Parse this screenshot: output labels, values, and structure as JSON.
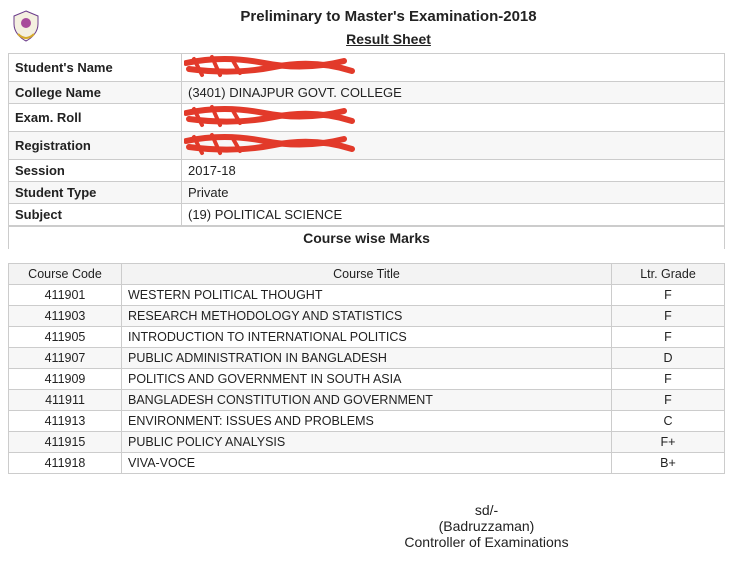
{
  "header": {
    "main_title": "Preliminary to Master's Examination-2018",
    "sheet_title": "Result Sheet"
  },
  "info": {
    "rows": [
      {
        "label": "Student's Name",
        "value": "",
        "redacted": true
      },
      {
        "label": "College Name",
        "value": "(3401) DINAJPUR GOVT. COLLEGE",
        "redacted": false
      },
      {
        "label": "Exam. Roll",
        "value": "",
        "redacted": true
      },
      {
        "label": "Registration",
        "value": "",
        "redacted": true
      },
      {
        "label": "Session",
        "value": "2017-18",
        "redacted": false
      },
      {
        "label": "Student Type",
        "value": "Private",
        "redacted": false
      },
      {
        "label": "Subject",
        "value": "(19) POLITICAL SCIENCE",
        "redacted": false
      }
    ]
  },
  "marks": {
    "caption": "Course wise Marks",
    "columns": [
      "Course Code",
      "Course Title",
      "Ltr. Grade"
    ],
    "rows": [
      {
        "code": "411901",
        "title": "WESTERN POLITICAL THOUGHT",
        "grade": "F"
      },
      {
        "code": "411903",
        "title": "RESEARCH METHODOLOGY AND STATISTICS",
        "grade": "F"
      },
      {
        "code": "411905",
        "title": "INTRODUCTION TO INTERNATIONAL POLITICS",
        "grade": "F"
      },
      {
        "code": "411907",
        "title": "PUBLIC ADMINISTRATION IN BANGLADESH",
        "grade": "D"
      },
      {
        "code": "411909",
        "title": "POLITICS AND GOVERNMENT IN SOUTH ASIA",
        "grade": "F"
      },
      {
        "code": "411911",
        "title": "BANGLADESH CONSTITUTION AND GOVERNMENT",
        "grade": "F"
      },
      {
        "code": "411913",
        "title": "ENVIRONMENT: ISSUES AND PROBLEMS",
        "grade": "C"
      },
      {
        "code": "411915",
        "title": "PUBLIC POLICY ANALYSIS",
        "grade": "F+"
      },
      {
        "code": "411918",
        "title": "VIVA-VOCE",
        "grade": "B+"
      }
    ]
  },
  "signature": {
    "line1": "sd/-",
    "line2": "(Badruzzaman)",
    "line3": "Controller of Examinations"
  },
  "style": {
    "redact_color": "#e23a2a"
  }
}
